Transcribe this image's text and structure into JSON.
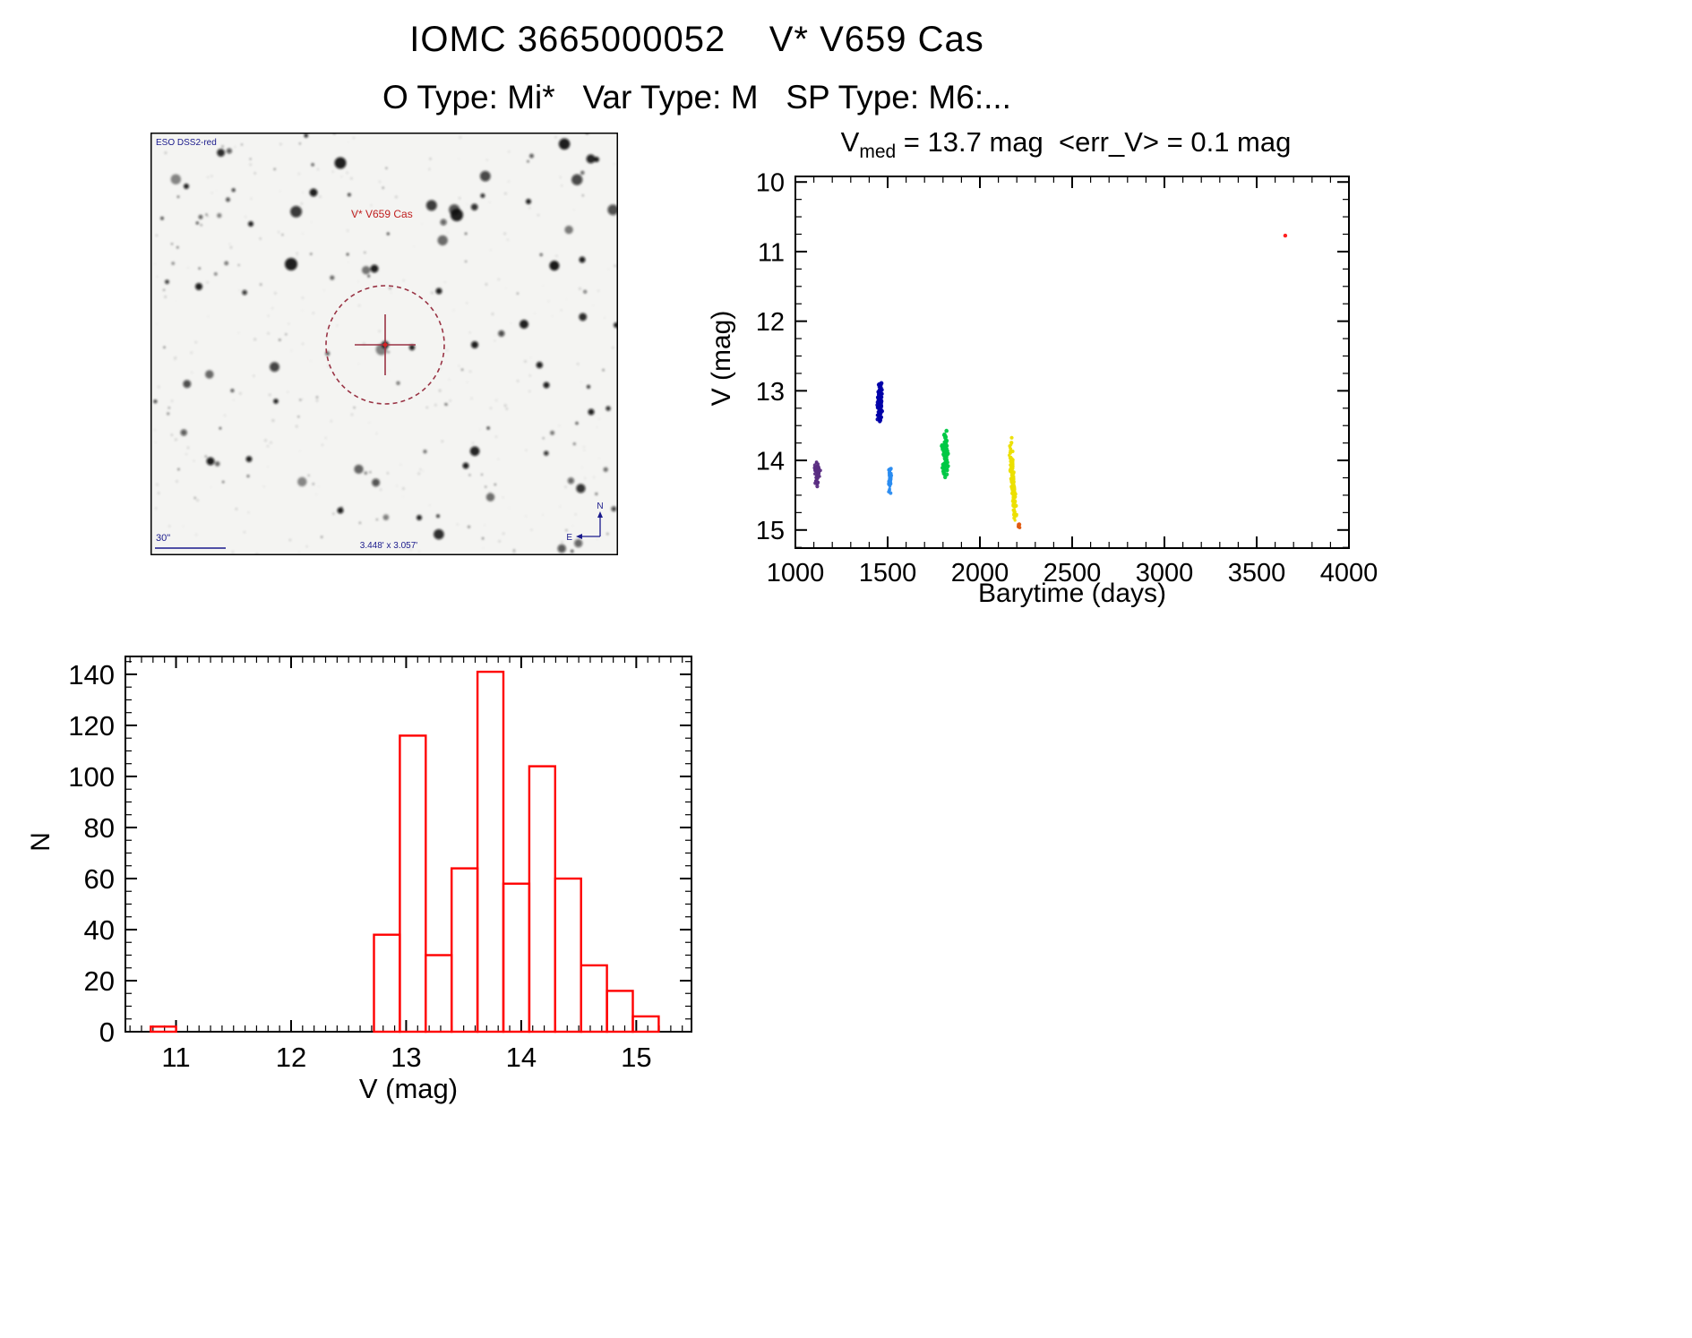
{
  "page": {
    "title": "IOMC 3665000052    V* V659 Cas",
    "subtitle": "O Type: Mi*   Var Type: M   SP Type: M6:..."
  },
  "finding_chart": {
    "survey_label": "ESO DSS2-red",
    "target_label": "V* V659 Cas",
    "scale_label": "30\"",
    "fov_label": "3.448' x 3.057'",
    "compass_north_label": "N",
    "compass_east_label": "E",
    "label_color": "#1a1a8c",
    "target_label_color": "#c02020",
    "marker_color": "#993344"
  },
  "chart_data": [
    {
      "type": "scatter",
      "name": "light-curve",
      "title": "Vmed = 13.7 mag <err_V> = 0.1 mag",
      "title_parts": {
        "base": "V",
        "subscript": "med",
        "rest": " = 13.7 mag  <err_V> = 0.1 mag"
      },
      "xlabel": "Barytime (days)",
      "ylabel": "V (mag)",
      "v_med_mag": 13.7,
      "err_v_mag": 0.1,
      "xlim": [
        1000,
        4000
      ],
      "ylim": [
        9.92,
        15.26
      ],
      "y_axis_inverted": true,
      "x_ticks": [
        1000,
        1500,
        2000,
        2500,
        3000,
        3500,
        4000
      ],
      "y_ticks": [
        10,
        11,
        12,
        13,
        14,
        15
      ],
      "x_minor_step": 100,
      "y_minor_step": 0.25,
      "series": [
        {
          "name": "epoch-1",
          "color": "#5a2d82",
          "t_center": 1120,
          "t_spread": 14,
          "v_min": 13.95,
          "v_max": 14.42,
          "n": 50
        },
        {
          "name": "epoch-2",
          "color": "#0000a8",
          "t_center": 1458,
          "t_spread": 12,
          "v_min": 12.86,
          "v_max": 13.48,
          "n": 150
        },
        {
          "name": "epoch-3",
          "color": "#2a8cf0",
          "t_center": 1512,
          "t_spread": 8,
          "v_min": 14.05,
          "v_max": 14.5,
          "n": 50
        },
        {
          "name": "epoch-4",
          "color": "#00c844",
          "t_center": 1812,
          "t_spread": 15,
          "v_min": 13.5,
          "v_max": 14.28,
          "n": 100
        },
        {
          "name": "epoch-5",
          "color": "#ecdf00",
          "t_center": 2178,
          "t_spread": 9,
          "v_min": 13.66,
          "v_max": 14.92,
          "n": 130,
          "slant_days_per_mag": 25
        },
        {
          "name": "epoch-5-faint-end",
          "color": "#e05a10",
          "t_center": 2212,
          "t_spread": 5,
          "v_min": 14.9,
          "v_max": 15.0,
          "n": 8
        },
        {
          "name": "outlier",
          "color": "#ff2020",
          "points": [
            [
              3655,
              10.77
            ]
          ]
        }
      ]
    },
    {
      "type": "bar",
      "name": "histogram",
      "xlabel": "V (mag)",
      "ylabel": "N",
      "xlim": [
        10.56,
        15.48
      ],
      "ylim": [
        0,
        147
      ],
      "x_ticks": [
        11,
        12,
        13,
        14,
        15
      ],
      "y_ticks": [
        0,
        20,
        40,
        60,
        80,
        100,
        120,
        140
      ],
      "x_minor_step": 0.1,
      "y_minor_step": 5,
      "bar_color": "#ff0000",
      "bars": [
        {
          "x0": 10.78,
          "x1": 11.0,
          "n": 2
        },
        {
          "x0": 12.72,
          "x1": 12.945,
          "n": 38
        },
        {
          "x0": 12.945,
          "x1": 13.17,
          "n": 116
        },
        {
          "x0": 13.17,
          "x1": 13.395,
          "n": 30
        },
        {
          "x0": 13.395,
          "x1": 13.62,
          "n": 64
        },
        {
          "x0": 13.62,
          "x1": 13.845,
          "n": 141
        },
        {
          "x0": 13.845,
          "x1": 14.07,
          "n": 58
        },
        {
          "x0": 14.07,
          "x1": 14.295,
          "n": 104
        },
        {
          "x0": 14.295,
          "x1": 14.52,
          "n": 60
        },
        {
          "x0": 14.52,
          "x1": 14.745,
          "n": 26
        },
        {
          "x0": 14.745,
          "x1": 14.97,
          "n": 16
        },
        {
          "x0": 14.97,
          "x1": 15.195,
          "n": 6
        }
      ]
    }
  ]
}
